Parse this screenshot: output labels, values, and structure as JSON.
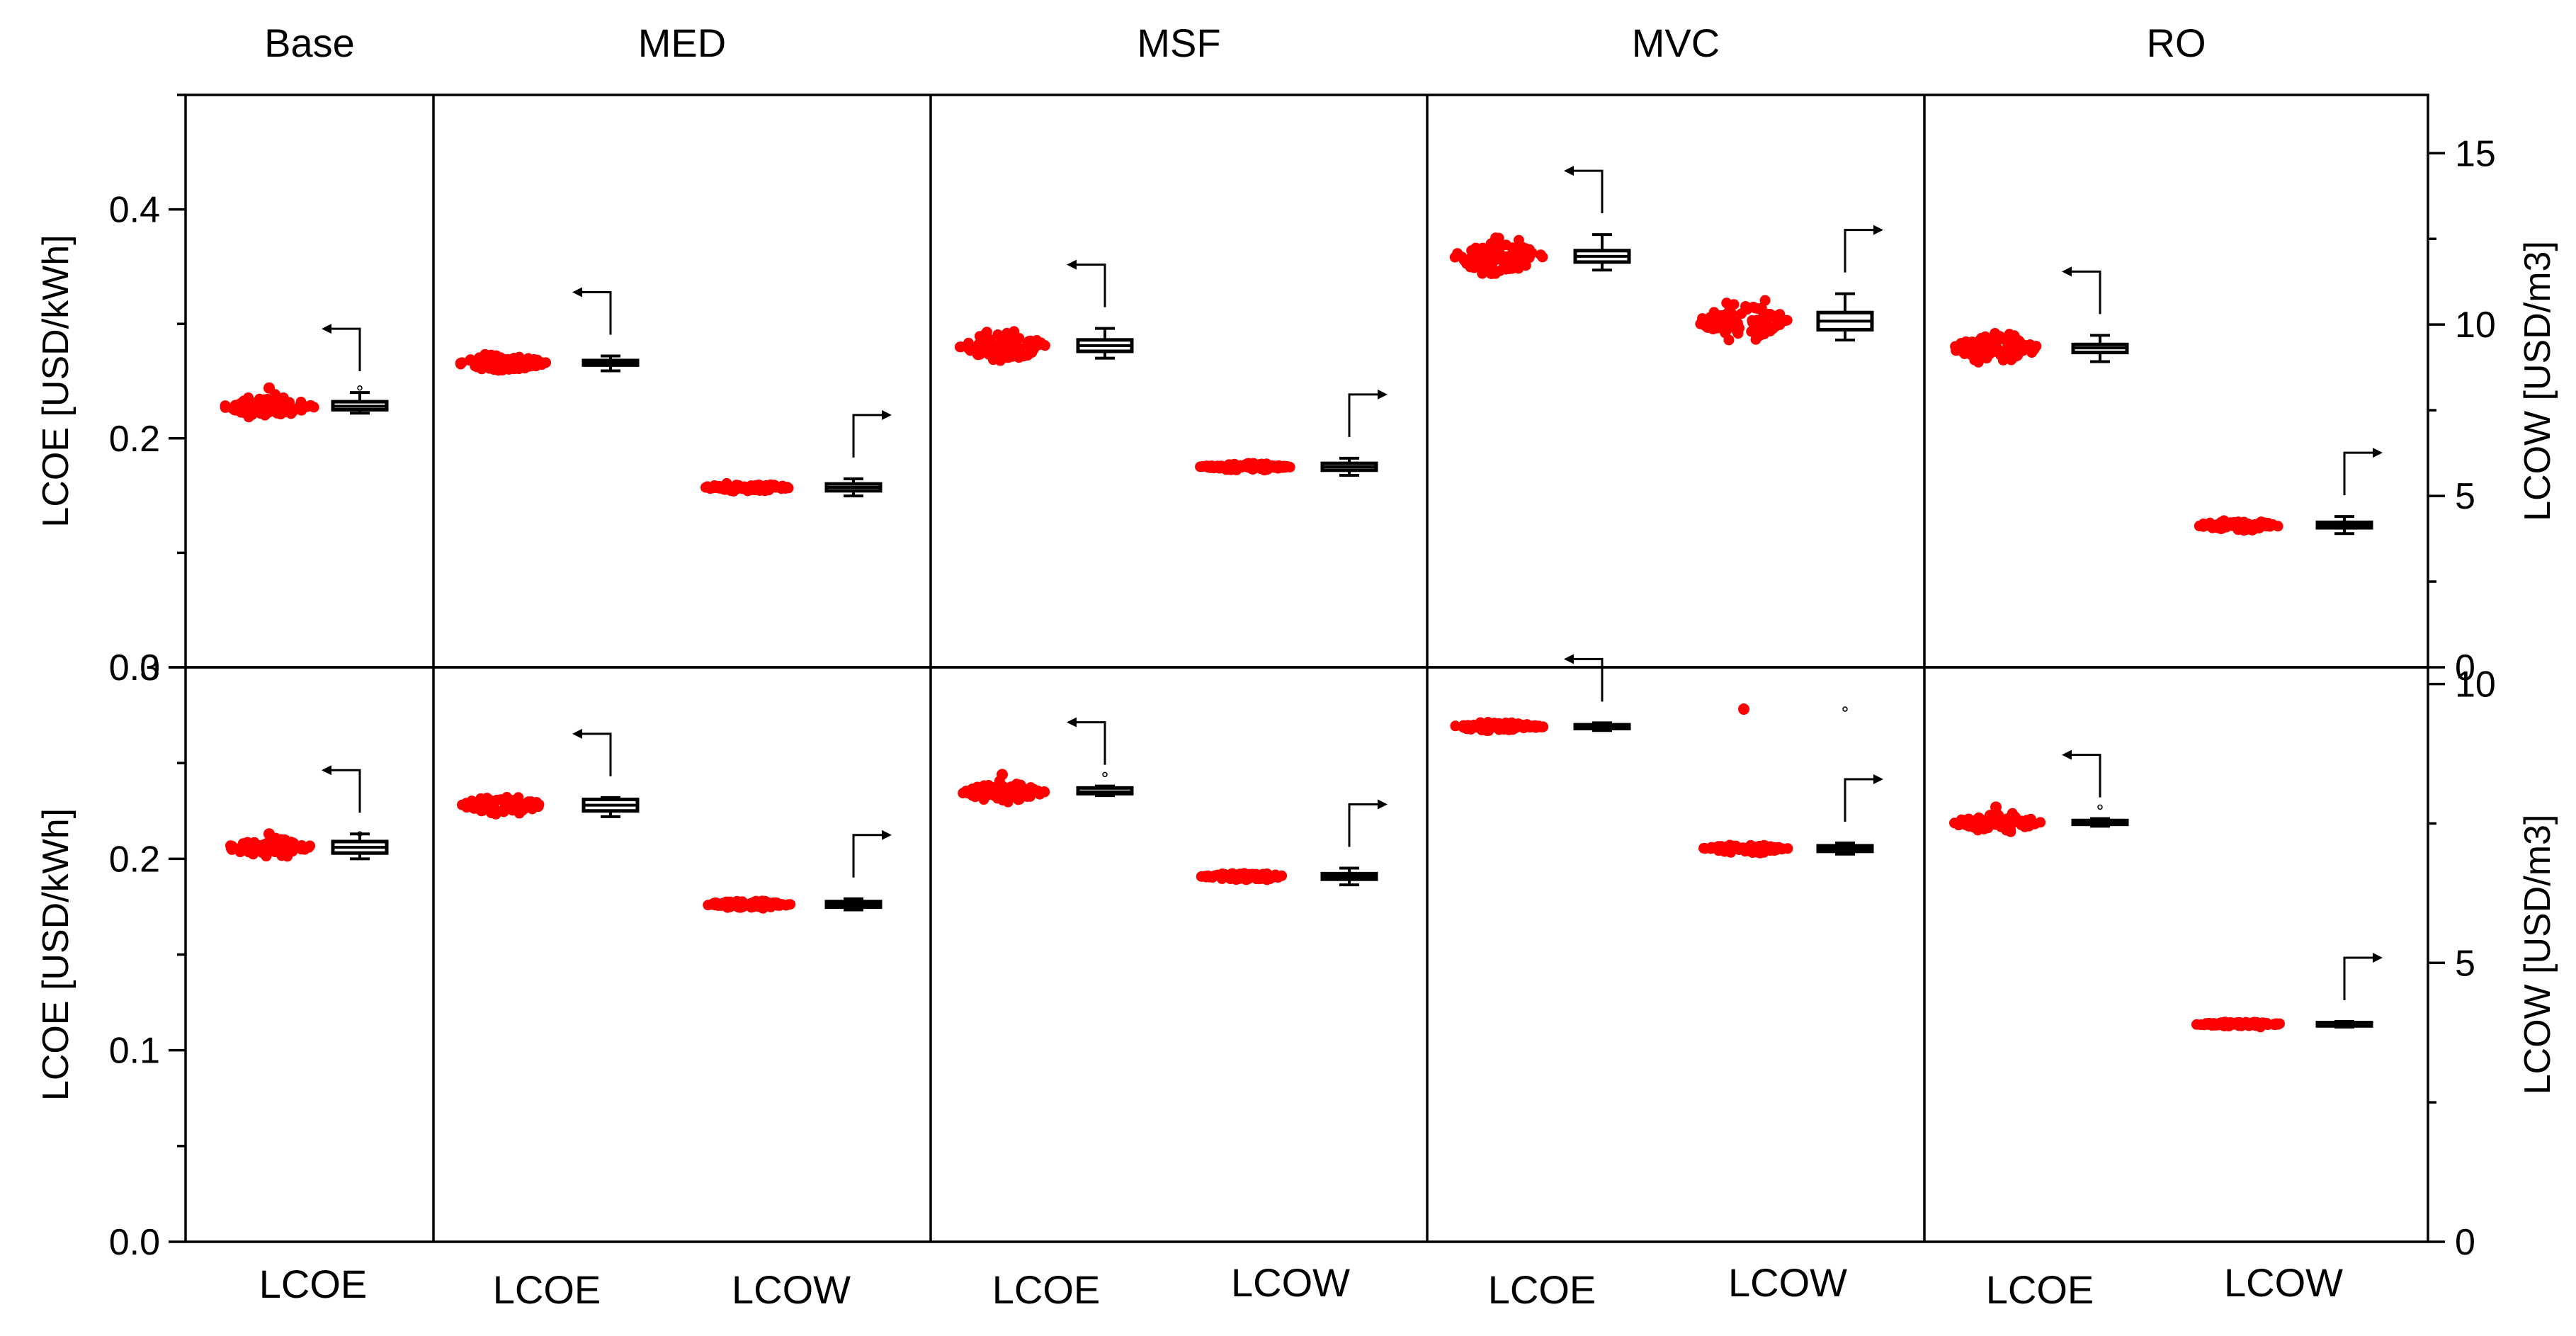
{
  "chart_data": {
    "type": "box",
    "columns": [
      "Base",
      "MED",
      "MSF",
      "MVC",
      "RO"
    ],
    "categories": [
      "LCOE",
      "LCOE",
      "LCOW",
      "LCOE",
      "LCOW",
      "LCOE",
      "LCOW",
      "LCOE",
      "LCOW"
    ],
    "rows": [
      {
        "left_axis": {
          "label": "LCOE [USD/kWh]",
          "range": [
            0,
            0.5
          ],
          "ticks": [
            0.0,
            0.2,
            0.4
          ],
          "tick_labels": [
            "0.0",
            "0.2",
            "0.4"
          ],
          "minor_step": 0.1
        },
        "right_axis": {
          "label": "LCOW [USD/m3]",
          "range": [
            0,
            16.7
          ],
          "ticks": [
            0,
            5,
            10,
            15
          ],
          "tick_labels": [
            "0",
            "5",
            "10",
            "15"
          ],
          "minor_step": 2.5
        },
        "series": [
          {
            "column": "Base",
            "metric": "LCOE",
            "axis": "left",
            "median": 0.228,
            "q1": 0.225,
            "q3": 0.232,
            "min": 0.222,
            "max": 0.24,
            "spread": 0.004,
            "outliers": [
              0.244
            ]
          },
          {
            "column": "MED",
            "metric": "LCOE",
            "axis": "left",
            "median": 0.266,
            "q1": 0.264,
            "q3": 0.268,
            "min": 0.259,
            "max": 0.272,
            "spread": 0.003,
            "outliers": []
          },
          {
            "column": "MED",
            "metric": "LCOW",
            "axis": "right",
            "median": 5.25,
            "q1": 5.15,
            "q3": 5.35,
            "min": 5.0,
            "max": 5.5,
            "spread": 0.05,
            "outliers": []
          },
          {
            "column": "MSF",
            "metric": "LCOE",
            "axis": "left",
            "median": 0.281,
            "q1": 0.276,
            "q3": 0.286,
            "min": 0.27,
            "max": 0.296,
            "spread": 0.006,
            "outliers": []
          },
          {
            "column": "MSF",
            "metric": "LCOW",
            "axis": "right",
            "median": 5.85,
            "q1": 5.75,
            "q3": 5.95,
            "min": 5.6,
            "max": 6.1,
            "spread": 0.05,
            "outliers": []
          },
          {
            "column": "MVC",
            "metric": "LCOE",
            "axis": "left",
            "median": 0.359,
            "q1": 0.354,
            "q3": 0.364,
            "min": 0.347,
            "max": 0.378,
            "spread": 0.007,
            "outliers": []
          },
          {
            "column": "MVC",
            "metric": "LCOW",
            "axis": "right",
            "median": 10.1,
            "q1": 9.85,
            "q3": 10.35,
            "min": 9.55,
            "max": 10.9,
            "spread": 0.25,
            "outliers": []
          },
          {
            "column": "RO",
            "metric": "LCOE",
            "axis": "left",
            "median": 0.279,
            "q1": 0.275,
            "q3": 0.282,
            "min": 0.267,
            "max": 0.29,
            "spread": 0.005,
            "outliers": []
          },
          {
            "column": "RO",
            "metric": "LCOW",
            "axis": "right",
            "median": 4.15,
            "q1": 4.07,
            "q3": 4.23,
            "min": 3.9,
            "max": 4.4,
            "spread": 0.06,
            "outliers": []
          }
        ]
      },
      {
        "left_axis": {
          "label": "LCOE [USD/kWh]",
          "range": [
            0,
            0.3
          ],
          "ticks": [
            0.0,
            0.1,
            0.2,
            0.3
          ],
          "tick_labels": [
            "0.0",
            "0.1",
            "0.2",
            "0.3"
          ],
          "minor_step": 0.05
        },
        "right_axis": {
          "label": "LCOW [USD/m3]",
          "range": [
            0,
            10.3
          ],
          "ticks": [
            0,
            5,
            10
          ],
          "tick_labels": [
            "0",
            "5",
            "10"
          ],
          "minor_step": 2.5
        },
        "series": [
          {
            "column": "Base",
            "metric": "LCOE",
            "axis": "left",
            "median": 0.206,
            "q1": 0.203,
            "q3": 0.209,
            "min": 0.2,
            "max": 0.213,
            "spread": 0.002,
            "outliers": [
              0.213
            ]
          },
          {
            "column": "MED",
            "metric": "LCOE",
            "axis": "left",
            "median": 0.228,
            "q1": 0.225,
            "q3": 0.231,
            "min": 0.222,
            "max": 0.232,
            "spread": 0.002,
            "outliers": []
          },
          {
            "column": "MED",
            "metric": "LCOW",
            "axis": "right",
            "median": 6.05,
            "q1": 6.0,
            "q3": 6.1,
            "min": 5.95,
            "max": 6.15,
            "spread": 0.03,
            "outliers": []
          },
          {
            "column": "MSF",
            "metric": "LCOE",
            "axis": "left",
            "median": 0.235,
            "q1": 0.234,
            "q3": 0.237,
            "min": 0.233,
            "max": 0.238,
            "spread": 0.002,
            "outliers": [
              0.244
            ]
          },
          {
            "column": "MSF",
            "metric": "LCOW",
            "axis": "right",
            "median": 6.55,
            "q1": 6.5,
            "q3": 6.6,
            "min": 6.4,
            "max": 6.7,
            "spread": 0.03,
            "outliers": []
          },
          {
            "column": "MVC",
            "metric": "LCOE",
            "axis": "left",
            "median": 0.269,
            "q1": 0.268,
            "q3": 0.27,
            "min": 0.267,
            "max": 0.271,
            "spread": 0.001,
            "outliers": []
          },
          {
            "column": "MVC",
            "metric": "LCOW",
            "axis": "right",
            "median": 7.05,
            "q1": 7.0,
            "q3": 7.1,
            "min": 6.95,
            "max": 7.15,
            "spread": 0.03,
            "outliers": [
              9.55
            ]
          },
          {
            "column": "RO",
            "metric": "LCOE",
            "axis": "left",
            "median": 0.219,
            "q1": 0.218,
            "q3": 0.22,
            "min": 0.217,
            "max": 0.221,
            "spread": 0.002,
            "outliers": [
              0.227
            ]
          },
          {
            "column": "RO",
            "metric": "LCOW",
            "axis": "right",
            "median": 3.9,
            "q1": 3.87,
            "q3": 3.93,
            "min": 3.85,
            "max": 3.95,
            "spread": 0.02,
            "outliers": []
          }
        ]
      }
    ]
  }
}
